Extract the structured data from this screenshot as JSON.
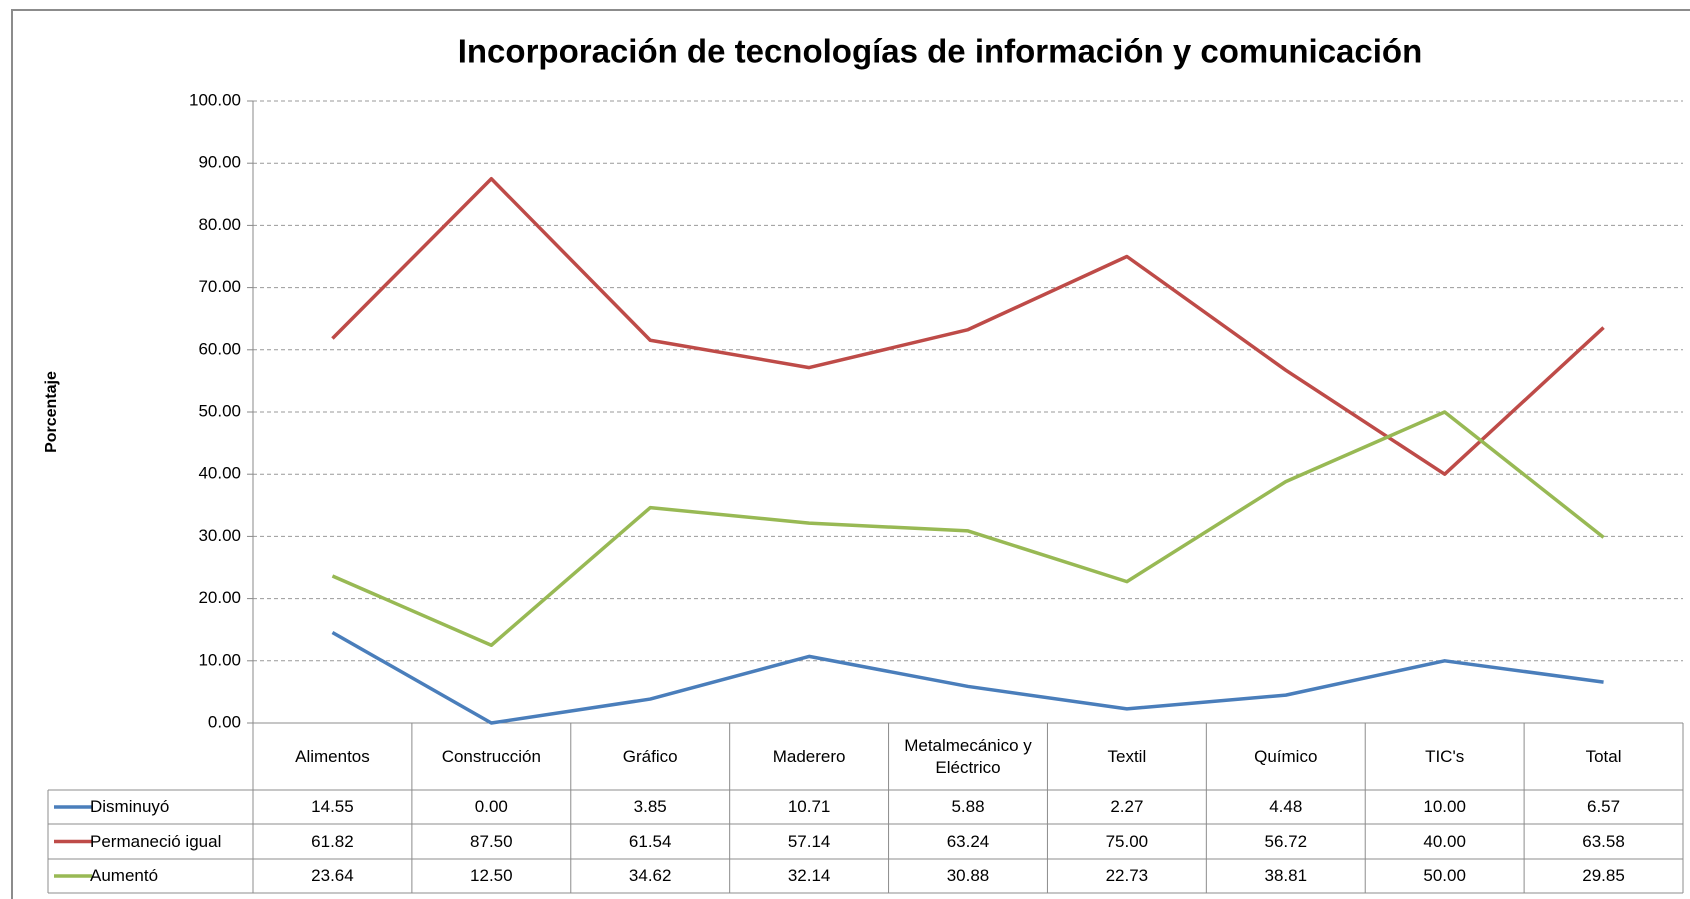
{
  "chart_data": {
    "type": "line",
    "title": "Incorporación de tecnologías de información y comunicación",
    "y_label": "Porcentaje",
    "categories": [
      "Alimentos",
      "Construcción",
      "Gráfico",
      "Maderero",
      "Metalmecánico y Eléctrico",
      "Textil",
      "Químico",
      "TIC's",
      "Total"
    ],
    "series": [
      {
        "name": "Disminuyó",
        "color": "#4a7ebb",
        "values": [
          14.55,
          0,
          3.85,
          10.71,
          5.88,
          2.27,
          4.48,
          10,
          6.57
        ],
        "value_labels": [
          "14.55",
          "0.00",
          "3.85",
          "10.71",
          "5.88",
          "2.27",
          "4.48",
          "10.00",
          "6.57"
        ]
      },
      {
        "name": "Permaneció igual",
        "color": "#be4b48",
        "values": [
          61.82,
          87.5,
          61.54,
          57.14,
          63.24,
          75,
          56.72,
          40,
          63.58
        ],
        "value_labels": [
          "61.82",
          "87.50",
          "61.54",
          "57.14",
          "63.24",
          "75.00",
          "56.72",
          "40.00",
          "63.58"
        ]
      },
      {
        "name": "Aumentó",
        "color": "#98b954",
        "values": [
          23.64,
          12.5,
          34.62,
          32.14,
          30.88,
          22.73,
          38.81,
          50,
          29.85
        ],
        "value_labels": [
          "23.64",
          "12.50",
          "34.62",
          "32.14",
          "30.88",
          "22.73",
          "38.81",
          "50.00",
          "29.85"
        ]
      }
    ],
    "ylim": [
      0,
      100
    ],
    "yticks": [
      {
        "value": 0,
        "label": "0.00"
      },
      {
        "value": 10,
        "label": "10.00"
      },
      {
        "value": 20,
        "label": "20.00"
      },
      {
        "value": 30,
        "label": "30.00"
      },
      {
        "value": 40,
        "label": "40.00"
      },
      {
        "value": 50,
        "label": "50.00"
      },
      {
        "value": 60,
        "label": "60.00"
      },
      {
        "value": 70,
        "label": "70.00"
      },
      {
        "value": 80,
        "label": "80.00"
      },
      {
        "value": 90,
        "label": "90.00"
      },
      {
        "value": 100,
        "label": "100.00"
      }
    ],
    "grid": true
  }
}
